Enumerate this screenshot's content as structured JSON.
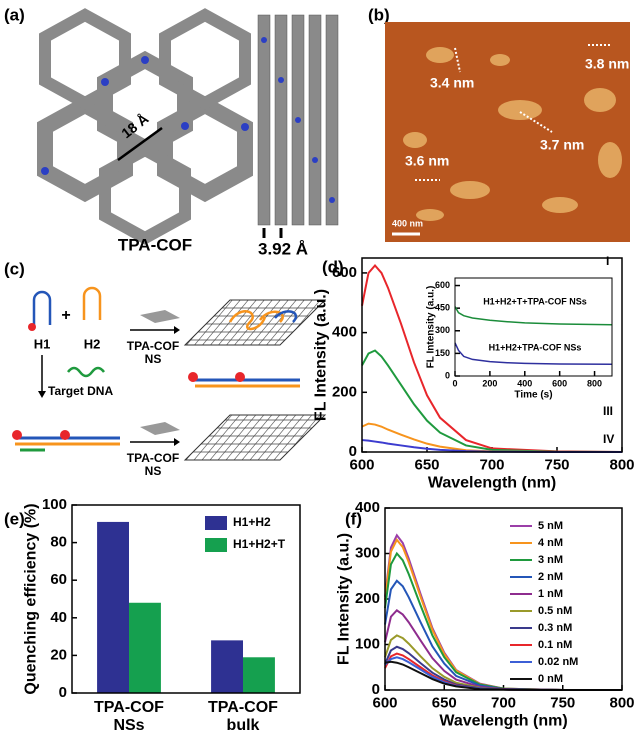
{
  "panels": {
    "a": {
      "label": "(a)",
      "pore_size": "18 Å",
      "name": "TPA-COF",
      "interlayer": "3.92 Å"
    },
    "b": {
      "label": "(b)",
      "heights": [
        "3.4 nm",
        "3.8 nm",
        "3.7 nm",
        "3.6 nm"
      ],
      "scale_bar": "400 nm"
    },
    "c": {
      "label": "(c)",
      "probe1": "H1",
      "plus": "+",
      "probe2": "H2",
      "nanosheet": "TPA-COF NS",
      "target": "Target DNA"
    }
  },
  "chart_data": [
    {
      "type": "line",
      "panel_label": "(d)",
      "xlabel": "Wavelength (nm)",
      "ylabel": "FL Intensity (a.u.)",
      "x": [
        600,
        605,
        610,
        615,
        620,
        630,
        640,
        650,
        660,
        680,
        700,
        750,
        800
      ],
      "xlim": [
        600,
        800
      ],
      "xticks": [
        600,
        650,
        700,
        750,
        800
      ],
      "ylim": [
        0,
        650
      ],
      "yticks": [
        0,
        200,
        400,
        600
      ],
      "series": [
        {
          "name": "I",
          "color": "#e8262b",
          "values": [
            490,
            600,
            625,
            600,
            550,
            430,
            300,
            190,
            115,
            40,
            12,
            2,
            0
          ]
        },
        {
          "name": "II",
          "color": "#1f9a3e",
          "values": [
            290,
            330,
            340,
            320,
            290,
            225,
            160,
            105,
            65,
            22,
            7,
            1,
            0
          ]
        },
        {
          "name": "III",
          "color": "#f7941d",
          "values": [
            85,
            95,
            92,
            85,
            75,
            58,
            42,
            28,
            18,
            6,
            2,
            0,
            0
          ]
        },
        {
          "name": "IV",
          "color": "#3c3ccf",
          "values": [
            40,
            38,
            35,
            32,
            28,
            22,
            16,
            11,
            7,
            3,
            1,
            0,
            0
          ]
        }
      ]
    },
    {
      "type": "line",
      "xlabel": "Time (s)",
      "ylabel": "FL Intensity (a.u.)",
      "x": [
        0,
        20,
        50,
        100,
        200,
        300,
        400,
        600,
        900
      ],
      "xlim": [
        0,
        900
      ],
      "xticks": [
        0,
        200,
        400,
        600,
        800
      ],
      "ylim": [
        0,
        650
      ],
      "yticks": [
        0,
        150,
        300,
        450,
        600
      ],
      "series": [
        {
          "name": "H1+H2+T+TPA-COF NSs",
          "color": "#1b8c3a",
          "values": [
            460,
            420,
            400,
            385,
            370,
            360,
            352,
            345,
            340
          ]
        },
        {
          "name": "H1+H2+TPA-COF NSs",
          "color": "#2e2f9e",
          "values": [
            220,
            170,
            130,
            110,
            95,
            88,
            84,
            80,
            78
          ]
        }
      ]
    },
    {
      "type": "bar",
      "panel_label": "(e)",
      "ylabel": "Quenching efficiency (%)",
      "categories": [
        "TPA-COF NSs",
        "TPA-COF bulk"
      ],
      "ylim": [
        0,
        100
      ],
      "yticks": [
        0,
        20,
        40,
        60,
        80,
        100
      ],
      "legend": "upper right",
      "series": [
        {
          "name": "H1+H2",
          "color": "#2e3192",
          "values": [
            91,
            28
          ]
        },
        {
          "name": "H1+H2+T",
          "color": "#15a04f",
          "values": [
            48,
            19
          ]
        }
      ]
    },
    {
      "type": "line",
      "panel_label": "(f)",
      "xlabel": "Wavelength (nm)",
      "ylabel": "FL Intensity (a.u.)",
      "x": [
        600,
        605,
        610,
        615,
        620,
        630,
        640,
        650,
        660,
        680,
        700,
        750,
        800
      ],
      "xlim": [
        600,
        800
      ],
      "xticks": [
        600,
        650,
        700,
        750,
        800
      ],
      "ylim": [
        0,
        400
      ],
      "yticks": [
        0,
        100,
        200,
        300,
        400
      ],
      "legend": "upper right",
      "series": [
        {
          "name": "5 nM",
          "color": "#9b3fa8",
          "values": [
            205,
            313,
            340,
            323,
            289,
            211,
            136,
            82,
            44,
            14,
            3,
            0,
            0
          ]
        },
        {
          "name": "4 nM",
          "color": "#f7941d",
          "values": [
            198,
            304,
            330,
            314,
            281,
            205,
            132,
            79,
            43,
            13,
            3,
            0,
            0
          ]
        },
        {
          "name": "3 nM",
          "color": "#1f9a3e",
          "values": [
            180,
            276,
            300,
            285,
            255,
            186,
            120,
            72,
            39,
            12,
            3,
            0,
            0
          ]
        },
        {
          "name": "2 nM",
          "color": "#2456b8",
          "values": [
            144,
            221,
            240,
            228,
            204,
            149,
            96,
            58,
            31,
            10,
            2,
            0,
            0
          ]
        },
        {
          "name": "1 nM",
          "color": "#8e2c8e",
          "values": [
            105,
            161,
            175,
            166,
            149,
            109,
            70,
            42,
            23,
            7,
            2,
            0,
            0
          ]
        },
        {
          "name": "0.5 nM",
          "color": "#9a9a2a",
          "values": [
            72,
            110,
            120,
            114,
            102,
            74,
            48,
            29,
            16,
            5,
            1,
            0,
            0
          ]
        },
        {
          "name": "0.3 nM",
          "color": "#3a3a8c",
          "values": [
            57,
            87,
            95,
            90,
            81,
            59,
            38,
            23,
            12,
            4,
            1,
            0,
            0
          ]
        },
        {
          "name": "0.1 nM",
          "color": "#e8262b",
          "values": [
            48,
            74,
            80,
            76,
            68,
            50,
            32,
            19,
            10,
            3,
            1,
            0,
            0
          ]
        },
        {
          "name": "0.02 nM",
          "color": "#3c5fd6",
          "values": [
            55,
            68,
            72,
            68,
            61,
            45,
            29,
            17,
            9,
            3,
            1,
            0,
            0
          ]
        },
        {
          "name": "0 nM",
          "color": "#111111",
          "values": [
            60,
            62,
            60,
            56,
            50,
            37,
            24,
            14,
            8,
            2,
            1,
            0,
            0
          ]
        }
      ]
    }
  ]
}
